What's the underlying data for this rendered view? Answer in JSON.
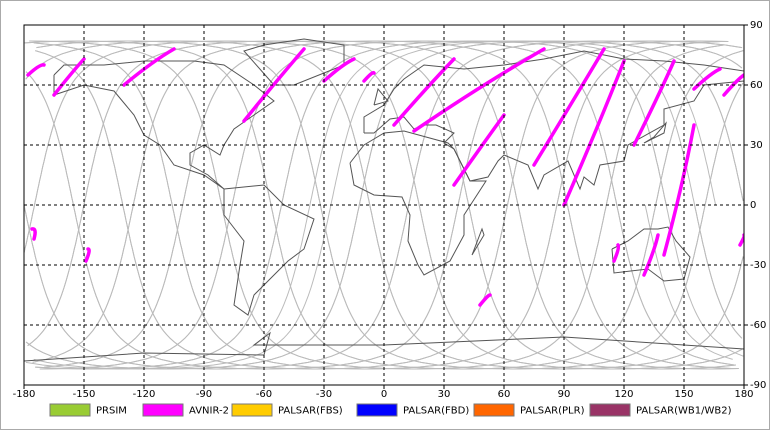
{
  "map": {
    "xlim": [
      -180,
      180
    ],
    "ylim": [
      -90,
      90
    ],
    "xticks": [
      -180,
      -150,
      -120,
      -90,
      -60,
      -30,
      0,
      30,
      60,
      90,
      120,
      150,
      180
    ],
    "yticks": [
      -90,
      -60,
      -30,
      0,
      30,
      60,
      90
    ],
    "grid": true,
    "legend": [
      {
        "name": "PRSIM",
        "color": "#99cc33"
      },
      {
        "name": "AVNIR-2",
        "color": "#ff00ff"
      },
      {
        "name": "PALSAR(FBS)",
        "color": "#ffcc00"
      },
      {
        "name": "PALSAR(FBD)",
        "color": "#0000ff"
      },
      {
        "name": "PALSAR(PLR)",
        "color": "#ff6600"
      },
      {
        "name": "PALSAR(WB1/WB2)",
        "color": "#993366"
      }
    ]
  }
}
